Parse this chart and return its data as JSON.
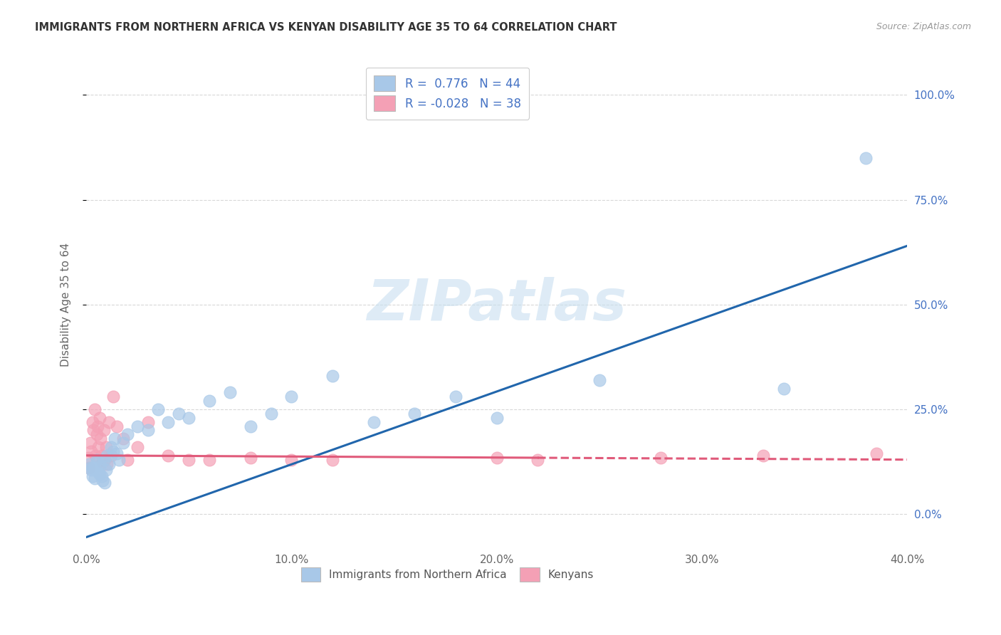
{
  "title": "IMMIGRANTS FROM NORTHERN AFRICA VS KENYAN DISABILITY AGE 35 TO 64 CORRELATION CHART",
  "source": "Source: ZipAtlas.com",
  "xlabel": "",
  "ylabel": "Disability Age 35 to 64",
  "xlim": [
    0.0,
    40.0
  ],
  "ylim": [
    -8.0,
    108.0
  ],
  "xticks": [
    0.0,
    10.0,
    20.0,
    30.0,
    40.0
  ],
  "yticks": [
    0.0,
    25.0,
    50.0,
    75.0,
    100.0
  ],
  "R_blue": 0.776,
  "N_blue": 44,
  "R_pink": -0.028,
  "N_pink": 38,
  "blue_color": "#a8c8e8",
  "blue_line_color": "#2166ac",
  "pink_color": "#f4a0b5",
  "pink_line_color": "#e05a7a",
  "legend_label_blue": "Immigrants from Northern Africa",
  "legend_label_pink": "Kenyans",
  "blue_line_x0": 0.0,
  "blue_line_y0": -5.5,
  "blue_line_x1": 40.0,
  "blue_line_y1": 64.0,
  "pink_line_x0": 0.0,
  "pink_line_y0": 14.0,
  "pink_line_x1": 40.0,
  "pink_line_y1": 13.0,
  "pink_solid_end": 22.0,
  "blue_x": [
    0.15,
    0.2,
    0.25,
    0.3,
    0.35,
    0.4,
    0.5,
    0.55,
    0.6,
    0.65,
    0.7,
    0.75,
    0.8,
    0.85,
    0.9,
    0.95,
    1.0,
    1.1,
    1.2,
    1.3,
    1.4,
    1.5,
    1.6,
    1.8,
    2.0,
    2.5,
    3.0,
    3.5,
    4.0,
    4.5,
    5.0,
    6.0,
    7.0,
    8.0,
    9.0,
    10.0,
    12.0,
    14.0,
    16.0,
    18.0,
    20.0,
    25.0,
    34.0,
    38.0
  ],
  "blue_y": [
    12.0,
    11.0,
    10.5,
    9.0,
    11.0,
    8.5,
    13.0,
    12.5,
    10.0,
    9.5,
    11.5,
    9.0,
    8.0,
    13.0,
    7.5,
    10.5,
    14.0,
    12.0,
    16.0,
    15.0,
    18.0,
    14.5,
    13.0,
    17.0,
    19.0,
    21.0,
    20.0,
    25.0,
    22.0,
    24.0,
    23.0,
    27.0,
    29.0,
    21.0,
    24.0,
    28.0,
    33.0,
    22.0,
    24.0,
    28.0,
    23.0,
    32.0,
    30.0,
    85.0
  ],
  "pink_x": [
    0.1,
    0.15,
    0.2,
    0.25,
    0.3,
    0.35,
    0.4,
    0.45,
    0.5,
    0.55,
    0.6,
    0.65,
    0.7,
    0.75,
    0.8,
    0.85,
    0.9,
    0.95,
    1.0,
    1.1,
    1.2,
    1.3,
    1.5,
    1.8,
    2.0,
    2.5,
    3.0,
    4.0,
    5.0,
    6.0,
    8.0,
    10.0,
    12.0,
    20.0,
    22.0,
    28.0,
    33.0,
    38.5
  ],
  "pink_y": [
    13.5,
    11.0,
    17.0,
    15.0,
    22.0,
    20.0,
    25.0,
    14.0,
    19.0,
    21.0,
    16.0,
    23.0,
    18.0,
    14.0,
    12.5,
    20.0,
    13.0,
    16.0,
    12.0,
    22.0,
    14.0,
    28.0,
    21.0,
    18.0,
    13.0,
    16.0,
    22.0,
    14.0,
    13.0,
    13.0,
    13.5,
    13.0,
    13.0,
    13.5,
    13.0,
    13.5,
    14.0,
    14.5
  ],
  "watermark_text": "ZIPatlas",
  "watermark_color": "#c8dff0",
  "grid_color": "#d8d8d8",
  "background_color": "#ffffff"
}
